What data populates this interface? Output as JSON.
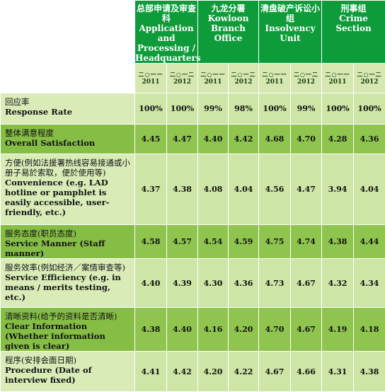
{
  "groups": [
    {
      "zh": "总部申请及审查科",
      "en": "Application and Processing / Headquarters"
    },
    {
      "zh": "九龙分署",
      "en": "Kowloon Branch Office"
    },
    {
      "zh": "清盘破产诉讼小组",
      "en": "Insolvency Unit"
    },
    {
      "zh": "刑事组",
      "en": "Crime Section"
    }
  ],
  "years": [
    {
      "zh": "二○一一",
      "num": "2011"
    },
    {
      "zh": "二○一二",
      "num": "2012"
    }
  ],
  "rows": [
    {
      "zh": "回应率",
      "en": "Response Rate",
      "values": [
        "100%",
        "100%",
        "99%",
        "98%",
        "100%",
        "99%",
        "100%",
        "100%"
      ]
    },
    {
      "zh": "整体满意程度",
      "en": "Overall Satisfaction",
      "values": [
        "4.45",
        "4.47",
        "4.40",
        "4.42",
        "4.68",
        "4.70",
        "4.28",
        "4.36"
      ]
    },
    {
      "zh": "方便(例如法援署热线容易接通或小册子易於索取，便於使用等)",
      "en": "Convenience (e.g. LAD hotline or pamphlet is easily accessible, user-friendly, etc.)",
      "values": [
        "4.37",
        "4.38",
        "4.08",
        "4.04",
        "4.56",
        "4.47",
        "3.94",
        "4.04"
      ]
    },
    {
      "zh": "服务态度(职员态度)",
      "en": "Service Manner (Staff manner)",
      "values": [
        "4.58",
        "4.57",
        "4.54",
        "4.59",
        "4.75",
        "4.74",
        "4.38",
        "4.44"
      ]
    },
    {
      "zh": "服务效率(例如经济／案情审查等)",
      "en": "Service Efficiency (e.g. in means / merits testing, etc.)",
      "values": [
        "4.40",
        "4.39",
        "4.30",
        "4.36",
        "4.73",
        "4.67",
        "4.32",
        "4.34"
      ]
    },
    {
      "zh": "清晰资料(给予的资料是否清晰)",
      "en": "Clear Information (Whether information given is clear)",
      "values": [
        "4.38",
        "4.40",
        "4.16",
        "4.20",
        "4.70",
        "4.67",
        "4.19",
        "4.18"
      ]
    },
    {
      "zh": "程序(安排会面日期)",
      "en": "Procedure (Date of interview fixed)",
      "values": [
        "4.41",
        "4.42",
        "4.20",
        "4.22",
        "4.67",
        "4.66",
        "4.31",
        "4.38"
      ]
    }
  ]
}
